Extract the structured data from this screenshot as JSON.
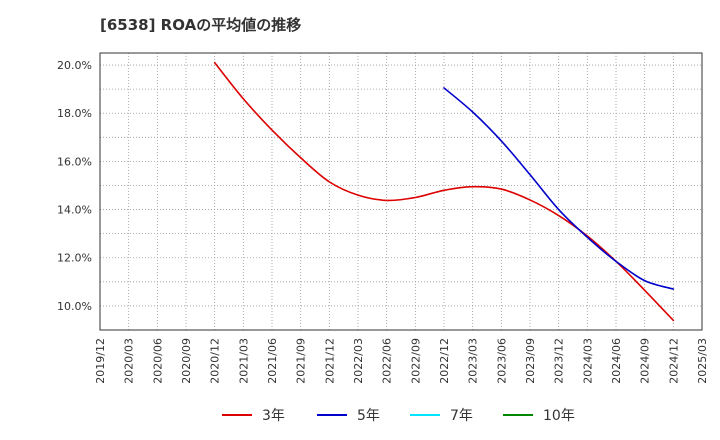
{
  "title": "[6538]  ROAの平均値の推移",
  "chart_data": {
    "type": "line",
    "x_labels": [
      "2019/12",
      "2020/03",
      "2020/06",
      "2020/09",
      "2020/12",
      "2021/03",
      "2021/06",
      "2021/09",
      "2021/12",
      "2022/03",
      "2022/06",
      "2022/09",
      "2022/12",
      "2023/03",
      "2023/06",
      "2023/09",
      "2023/12",
      "2024/03",
      "2024/06",
      "2024/09",
      "2024/12",
      "2025/03"
    ],
    "y_ticks": [
      "10.0%",
      "12.0%",
      "14.0%",
      "16.0%",
      "18.0%",
      "20.0%"
    ],
    "y_tick_values": [
      10,
      12,
      14,
      16,
      18,
      20
    ],
    "ylim": [
      9.0,
      20.5
    ],
    "grid": true,
    "legend_position": "bottom",
    "series": [
      {
        "name": "3年",
        "color": "#dd0000",
        "points": [
          [
            "2020/12",
            20.1
          ],
          [
            "2021/03",
            18.6
          ],
          [
            "2021/06",
            17.3
          ],
          [
            "2021/09",
            16.15
          ],
          [
            "2021/12",
            15.15
          ],
          [
            "2022/03",
            14.6
          ],
          [
            "2022/06",
            14.38
          ],
          [
            "2022/09",
            14.5
          ],
          [
            "2022/12",
            14.8
          ],
          [
            "2023/03",
            14.95
          ],
          [
            "2023/06",
            14.85
          ],
          [
            "2023/09",
            14.4
          ],
          [
            "2023/12",
            13.75
          ],
          [
            "2024/03",
            12.9
          ],
          [
            "2024/06",
            11.85
          ],
          [
            "2024/09",
            10.65
          ],
          [
            "2024/12",
            9.4
          ]
        ]
      },
      {
        "name": "5年",
        "color": "#0000cc",
        "points": [
          [
            "2022/12",
            19.05
          ],
          [
            "2023/03",
            18.05
          ],
          [
            "2023/06",
            16.85
          ],
          [
            "2023/09",
            15.45
          ],
          [
            "2023/12",
            14.0
          ],
          [
            "2024/03",
            12.85
          ],
          [
            "2024/06",
            11.85
          ],
          [
            "2024/09",
            11.05
          ],
          [
            "2024/12",
            10.7
          ]
        ]
      },
      {
        "name": "7年",
        "color": "#00e5ff",
        "points": []
      },
      {
        "name": "10年",
        "color": "#008800",
        "points": []
      }
    ]
  }
}
